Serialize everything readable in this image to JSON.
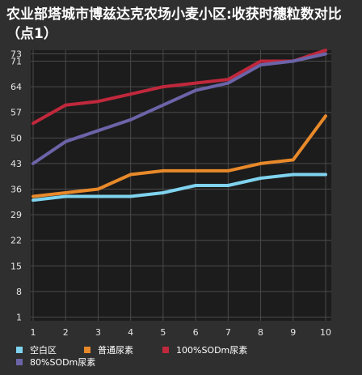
{
  "chart_data": {
    "type": "line",
    "title": "农业部塔城市博兹达克农场小麦小区:收获时穗粒数对比（点1）",
    "x": [
      1,
      2,
      3,
      4,
      5,
      6,
      7,
      8,
      9,
      10
    ],
    "y_ticks": [
      1,
      8,
      15,
      22,
      29,
      36,
      43,
      50,
      57,
      64,
      71,
      73
    ],
    "ylim": [
      0,
      74
    ],
    "grid": true,
    "legend_position": "bottom",
    "series": [
      {
        "name": "空白区",
        "color": "#7fd3ee",
        "values": [
          33,
          34,
          34,
          34,
          35,
          37,
          37,
          39,
          40,
          40
        ]
      },
      {
        "name": "普通尿素",
        "color": "#e8892a",
        "values": [
          34,
          35,
          36,
          40,
          41,
          41,
          41,
          43,
          44,
          56
        ]
      },
      {
        "name": "100%SODm尿素",
        "color": "#c0283c",
        "values": [
          54,
          59,
          60,
          62,
          64,
          65,
          66,
          71,
          71,
          74
        ]
      },
      {
        "name": "80%SODm尿素",
        "color": "#6b64a8",
        "values": [
          43,
          49,
          52,
          55,
          59,
          63,
          65,
          70,
          71,
          73
        ]
      }
    ]
  }
}
